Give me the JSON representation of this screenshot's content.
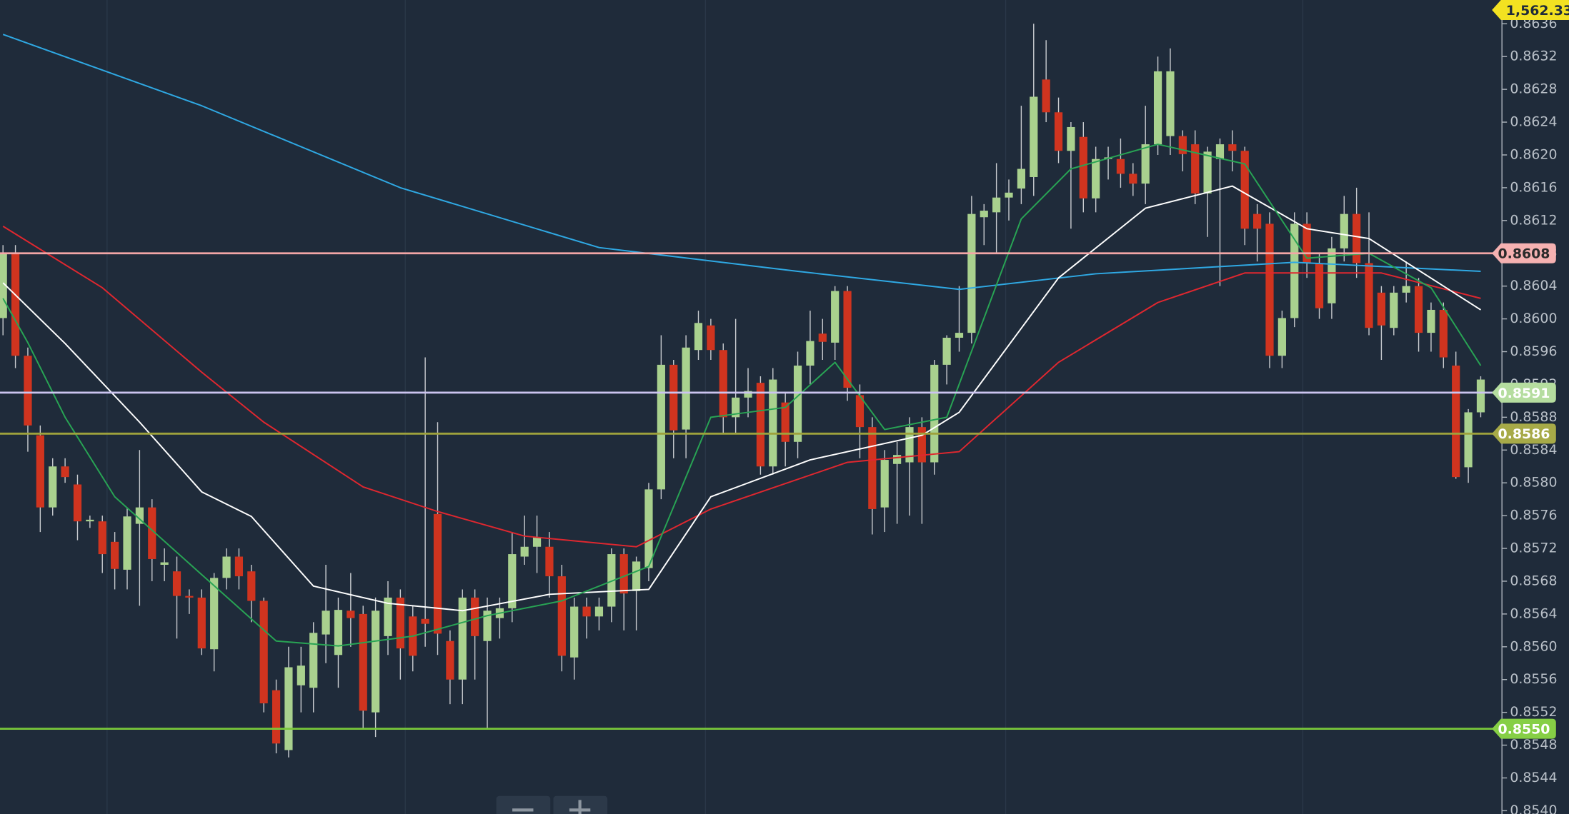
{
  "chart_data": {
    "type": "candlestick",
    "ylim": [
      0.85396,
      0.86389
    ],
    "yticks": [
      {
        "value": 0.8636,
        "label": "0.8636"
      },
      {
        "value": 0.8632,
        "label": "0.8632"
      },
      {
        "value": 0.8628,
        "label": "0.8628"
      },
      {
        "value": 0.8624,
        "label": "0.8624"
      },
      {
        "value": 0.862,
        "label": "0.8620"
      },
      {
        "value": 0.8616,
        "label": "0.8616"
      },
      {
        "value": 0.8612,
        "label": "0.8612"
      },
      {
        "value": 0.8608,
        "label": "0.8608"
      },
      {
        "value": 0.8604,
        "label": "0.8604"
      },
      {
        "value": 0.86,
        "label": "0.8600"
      },
      {
        "value": 0.8596,
        "label": "0.8596"
      },
      {
        "value": 0.8592,
        "label": "0.8592"
      },
      {
        "value": 0.8588,
        "label": "0.8588"
      },
      {
        "value": 0.8584,
        "label": "0.8584"
      },
      {
        "value": 0.858,
        "label": "0.8580"
      },
      {
        "value": 0.8576,
        "label": "0.8576"
      },
      {
        "value": 0.8572,
        "label": "0.8572"
      },
      {
        "value": 0.8568,
        "label": "0.8568"
      },
      {
        "value": 0.8564,
        "label": "0.8564"
      },
      {
        "value": 0.856,
        "label": "0.8560"
      },
      {
        "value": 0.8556,
        "label": "0.8556"
      },
      {
        "value": 0.8552,
        "label": "0.8552"
      },
      {
        "value": 0.8548,
        "label": "0.8548"
      },
      {
        "value": 0.8544,
        "label": "0.8544"
      },
      {
        "value": 0.854,
        "label": "0.8540"
      }
    ],
    "up_color": "#a9d18e",
    "down_color": "#d0341f",
    "wick_color": "#c9ccd0",
    "candles": {
      "open": [
        0.86001,
        0.8608,
        0.85955,
        0.85858,
        0.8577,
        0.8582,
        0.85798,
        0.85753,
        0.85753,
        0.85728,
        0.85694,
        0.8575,
        0.8577,
        0.857,
        0.85692,
        0.85662,
        0.8566,
        0.85597,
        0.85684,
        0.8571,
        0.85692,
        0.85656,
        0.85547,
        0.85474,
        0.85553,
        0.8555,
        0.85615,
        0.8559,
        0.85644,
        0.8564,
        0.8552,
        0.85613,
        0.8566,
        0.85637,
        0.85634,
        0.85762,
        0.85607,
        0.8556,
        0.8566,
        0.85607,
        0.85635,
        0.85647,
        0.8571,
        0.85722,
        0.85722,
        0.85686,
        0.85587,
        0.85649,
        0.85637,
        0.85649,
        0.85713,
        0.85668,
        0.85696,
        0.85792,
        0.85944,
        0.85865,
        0.85962,
        0.85992,
        0.85962,
        0.8588,
        0.85904,
        0.85922,
        0.8582,
        0.85898,
        0.8585,
        0.85943,
        0.85982,
        0.85971,
        0.86034,
        0.85907,
        0.85868,
        0.8577,
        0.85823,
        0.85825,
        0.85868,
        0.85825,
        0.85944,
        0.85977,
        0.85983,
        0.86124,
        0.8613,
        0.86148,
        0.86159,
        0.86173,
        0.86292,
        0.86252,
        0.86205,
        0.86222,
        0.86147,
        0.86195,
        0.86195,
        0.86177,
        0.86165,
        0.86213,
        0.86223,
        0.86223,
        0.86213,
        0.86153,
        0.86195,
        0.86213,
        0.86205,
        0.86128,
        0.86116,
        0.85955,
        0.86001,
        0.86116,
        0.86068,
        0.86019,
        0.86086,
        0.86128,
        0.86068,
        0.86032,
        0.85989,
        0.86032,
        0.8604,
        0.85983,
        0.86011,
        0.85943,
        0.85819,
        0.85886
      ],
      "high": [
        0.8609,
        0.8609,
        0.85965,
        0.8587,
        0.8583,
        0.8583,
        0.8581,
        0.8576,
        0.8576,
        0.8574,
        0.8577,
        0.8584,
        0.8578,
        0.8572,
        0.8571,
        0.8567,
        0.8567,
        0.8569,
        0.8572,
        0.8572,
        0.857,
        0.8566,
        0.8556,
        0.856,
        0.856,
        0.8563,
        0.857,
        0.8566,
        0.8569,
        0.8565,
        0.8566,
        0.8568,
        0.8567,
        0.8565,
        0.85953,
        0.85874,
        0.8562,
        0.8567,
        0.8567,
        0.8566,
        0.8566,
        0.8574,
        0.8576,
        0.8576,
        0.8574,
        0.857,
        0.8566,
        0.8566,
        0.8566,
        0.8572,
        0.8572,
        0.8571,
        0.858,
        0.8598,
        0.8595,
        0.8598,
        0.8601,
        0.86,
        0.8597,
        0.86,
        0.8594,
        0.8593,
        0.8594,
        0.8591,
        0.8596,
        0.8601,
        0.86,
        0.8604,
        0.8604,
        0.8592,
        0.8588,
        0.8584,
        0.8585,
        0.8588,
        0.8588,
        0.8595,
        0.8598,
        0.8604,
        0.8615,
        0.8614,
        0.8619,
        0.8617,
        0.8626,
        0.8636,
        0.8634,
        0.8627,
        0.8624,
        0.8624,
        0.8621,
        0.8621,
        0.8622,
        0.8619,
        0.8626,
        0.8632,
        0.8633,
        0.8623,
        0.8623,
        0.8621,
        0.8622,
        0.8623,
        0.8621,
        0.8614,
        0.8613,
        0.8601,
        0.8613,
        0.8613,
        0.8608,
        0.861,
        0.8615,
        0.8616,
        0.8613,
        0.8604,
        0.8604,
        0.8607,
        0.8605,
        0.8602,
        0.8602,
        0.8596,
        0.8589,
        0.8593
      ],
      "low": [
        0.8598,
        0.8594,
        0.85838,
        0.8574,
        0.8576,
        0.858,
        0.8573,
        0.85745,
        0.8569,
        0.8567,
        0.8567,
        0.8565,
        0.8568,
        0.8568,
        0.8561,
        0.8564,
        0.8559,
        0.8557,
        0.8567,
        0.8567,
        0.8563,
        0.8552,
        0.8547,
        0.85465,
        0.8552,
        0.8552,
        0.8558,
        0.8555,
        0.856,
        0.855,
        0.8549,
        0.8559,
        0.8556,
        0.8557,
        0.856,
        0.8559,
        0.8553,
        0.8553,
        0.8556,
        0.855,
        0.8561,
        0.8563,
        0.857,
        0.8569,
        0.8566,
        0.8557,
        0.8556,
        0.8561,
        0.8562,
        0.8563,
        0.8562,
        0.8562,
        0.8568,
        0.8578,
        0.8583,
        0.8583,
        0.8595,
        0.8595,
        0.8586,
        0.8586,
        0.8588,
        0.8581,
        0.8581,
        0.8582,
        0.8583,
        0.8592,
        0.8595,
        0.8595,
        0.859,
        0.8583,
        0.85737,
        0.8574,
        0.8575,
        0.8576,
        0.8575,
        0.8581,
        0.8592,
        0.8596,
        0.8597,
        0.8609,
        0.8608,
        0.8612,
        0.8614,
        0.8615,
        0.8624,
        0.8619,
        0.8611,
        0.8613,
        0.8613,
        0.8617,
        0.8616,
        0.8615,
        0.8614,
        0.862,
        0.862,
        0.8618,
        0.8614,
        0.861,
        0.8604,
        0.8618,
        0.8609,
        0.8607,
        0.8594,
        0.8594,
        0.8599,
        0.8605,
        0.86,
        0.86,
        0.8607,
        0.8605,
        0.8598,
        0.8595,
        0.8598,
        0.8602,
        0.8596,
        0.8596,
        0.8594,
        0.85805,
        0.858,
        0.8588
      ],
      "close": [
        0.8608,
        0.85955,
        0.8587,
        0.8577,
        0.8582,
        0.85807,
        0.85753,
        0.85755,
        0.85713,
        0.85695,
        0.85759,
        0.8577,
        0.85707,
        0.85703,
        0.85662,
        0.8566,
        0.85598,
        0.85684,
        0.8571,
        0.85686,
        0.85656,
        0.85531,
        0.85482,
        0.85575,
        0.85577,
        0.85617,
        0.85644,
        0.85645,
        0.85635,
        0.85522,
        0.85644,
        0.8566,
        0.85598,
        0.85589,
        0.85628,
        0.85616,
        0.8556,
        0.8566,
        0.85613,
        0.85644,
        0.85647,
        0.85713,
        0.85722,
        0.85734,
        0.85686,
        0.85589,
        0.85649,
        0.85637,
        0.85649,
        0.85713,
        0.85665,
        0.85704,
        0.85792,
        0.85944,
        0.85864,
        0.85965,
        0.85995,
        0.85962,
        0.8588,
        0.85904,
        0.85912,
        0.8582,
        0.85926,
        0.8585,
        0.85943,
        0.85973,
        0.85972,
        0.86034,
        0.85916,
        0.85868,
        0.85768,
        0.85828,
        0.85834,
        0.85868,
        0.85825,
        0.85944,
        0.85977,
        0.85983,
        0.86128,
        0.86132,
        0.86148,
        0.86154,
        0.86183,
        0.86271,
        0.86252,
        0.86205,
        0.86234,
        0.86147,
        0.86195,
        0.86197,
        0.86177,
        0.86165,
        0.86213,
        0.86302,
        0.86302,
        0.86201,
        0.86153,
        0.86204,
        0.86213,
        0.86205,
        0.8611,
        0.8611,
        0.85955,
        0.86001,
        0.86116,
        0.86068,
        0.86013,
        0.86086,
        0.86128,
        0.86068,
        0.85989,
        0.85992,
        0.86032,
        0.8604,
        0.85983,
        0.86011,
        0.85953,
        0.85807,
        0.85886,
        0.85926
      ]
    },
    "moving_averages": [
      {
        "color": "#2fa9e4",
        "x": [
          0,
          16,
          32,
          48,
          64,
          77,
          88,
          104,
          119
        ],
        "values": [
          0.86347,
          0.8626,
          0.8616,
          0.86087,
          0.86058,
          0.86036,
          0.86055,
          0.86069,
          0.86058
        ]
      },
      {
        "color": "#e0272f",
        "x": [
          0,
          8,
          16,
          21,
          29,
          35,
          42,
          51,
          57,
          68,
          77,
          85,
          93,
          100,
          111,
          119
        ],
        "values": [
          0.86113,
          0.86038,
          0.85935,
          0.85874,
          0.85795,
          0.85765,
          0.85735,
          0.85722,
          0.85768,
          0.85825,
          0.85838,
          0.85947,
          0.8602,
          0.86056,
          0.86056,
          0.86025
        ]
      },
      {
        "color": "#ffffff",
        "x": [
          0,
          5,
          11,
          16,
          20,
          25,
          31,
          37,
          44,
          52,
          57,
          65,
          74,
          77,
          85,
          92,
          99,
          105,
          110,
          119
        ],
        "values": [
          0.86044,
          0.8597,
          0.85874,
          0.85789,
          0.85759,
          0.85674,
          0.85653,
          0.85644,
          0.85664,
          0.8567,
          0.85783,
          0.85828,
          0.85858,
          0.85886,
          0.8605,
          0.86135,
          0.86162,
          0.8611,
          0.86098,
          0.86011
        ]
      },
      {
        "color": "#28a454",
        "x": [
          0,
          2,
          5,
          9,
          16,
          22,
          27,
          33,
          39,
          45,
          52,
          57,
          63,
          67,
          71,
          76,
          82,
          86,
          93,
          100,
          105,
          110,
          115,
          119
        ],
        "values": [
          0.86025,
          0.85971,
          0.8588,
          0.85783,
          0.85688,
          0.85607,
          0.85601,
          0.85613,
          0.85638,
          0.85656,
          0.85698,
          0.8588,
          0.85892,
          0.85947,
          0.85865,
          0.8588,
          0.86122,
          0.86183,
          0.86213,
          0.86189,
          0.86074,
          0.8608,
          0.86038,
          0.85943
        ]
      }
    ],
    "price_lines": [
      {
        "value": 0.8608,
        "label": "0.8608",
        "color": "#f3a6a6",
        "tag_color": "#f5b1b1"
      },
      {
        "value": 0.8591,
        "label": "0.8591",
        "color": "#cbc4ef",
        "tag_color": "#b5dd9f"
      },
      {
        "value": 0.8586,
        "label": "0.8586",
        "color": "#9ea23c",
        "tag_color": "#a7aa48"
      },
      {
        "value": 0.855,
        "label": "0.8550",
        "color": "#79c83a",
        "tag_color": "#86cf45"
      }
    ],
    "top_tag": "1,562.330"
  }
}
